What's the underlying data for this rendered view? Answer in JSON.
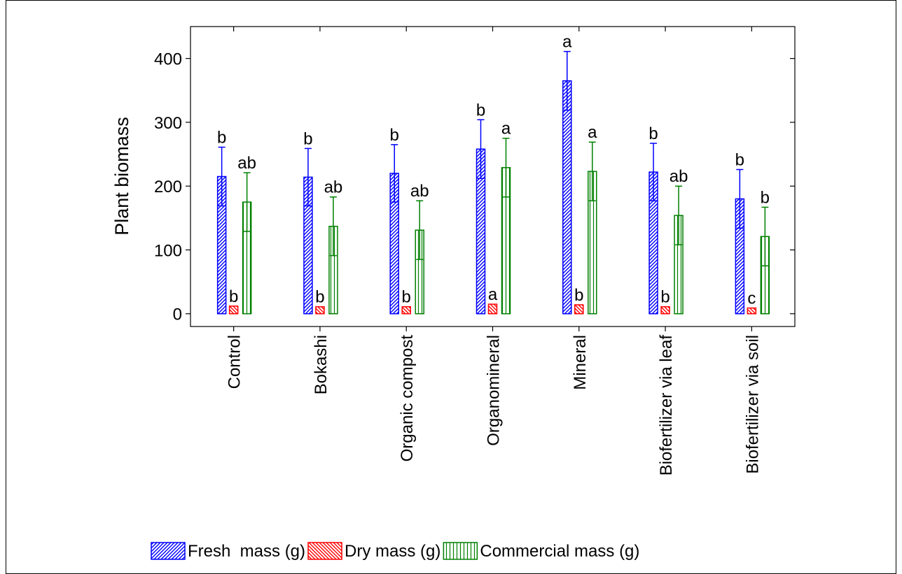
{
  "chart_data": {
    "type": "bar",
    "ylabel": "Plant biomass",
    "categories": [
      "Control",
      "Bokashi",
      "Organic compost",
      "Organomineral",
      "Mineral",
      "Biofertilizer via leaf",
      "Biofertilizer via soil"
    ],
    "series": [
      {
        "name": "Fresh  mass (g)",
        "color": "#0000ff",
        "pattern": "diagonal",
        "values": [
          215,
          214,
          220,
          258,
          365,
          222,
          180
        ],
        "errors": [
          46,
          45,
          45,
          46,
          46,
          45,
          46
        ],
        "letters": [
          "b",
          "b",
          "b",
          "b",
          "a",
          "b",
          "b"
        ]
      },
      {
        "name": "Dry mass (g)",
        "color": "#ff0000",
        "pattern": "backdiagonal",
        "values": [
          12,
          11,
          11,
          15,
          14,
          11,
          9
        ],
        "letters": [
          "b",
          "b",
          "b",
          "a",
          "b",
          "b",
          "c"
        ]
      },
      {
        "name": "Commercial mass (g)",
        "color": "#008000",
        "pattern": "vertical",
        "values": [
          175,
          137,
          131,
          229,
          223,
          154,
          121
        ],
        "errors": [
          46,
          46,
          46,
          46,
          46,
          46,
          46
        ],
        "letters": [
          "ab",
          "ab",
          "ab",
          "a",
          "a",
          "ab",
          "b"
        ]
      }
    ],
    "ylim": [
      -20,
      450
    ],
    "yticks": [
      0,
      100,
      200,
      300,
      400
    ]
  }
}
